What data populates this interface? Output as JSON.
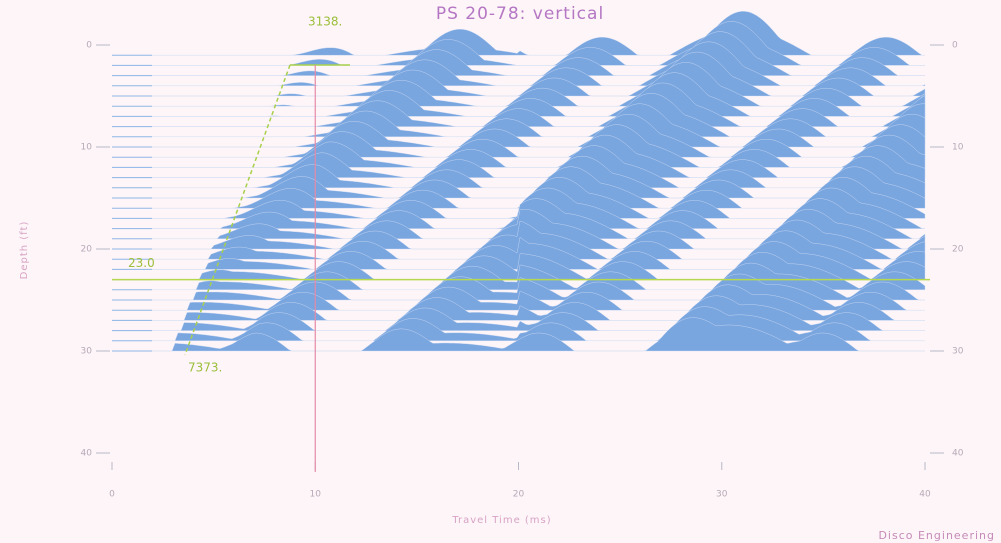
{
  "chart_data": {
    "type": "wiggle",
    "title": "PS 20-78: vertical",
    "x_label": "Travel Time (ms)",
    "y_label": "Depth (ft)",
    "credit": "Disco Engineering",
    "annotations": [
      "3138.",
      "7373."
    ],
    "xlim": [
      0,
      40
    ],
    "xticks": [
      0,
      10,
      20,
      30,
      40
    ],
    "ylim": [
      0,
      40
    ],
    "yticks": [
      0,
      10,
      20,
      30,
      40
    ],
    "depth_marker": {
      "value": 23,
      "label": "23.0"
    },
    "time_marker": 10,
    "fill_color": "#7aa6e0"
  }
}
